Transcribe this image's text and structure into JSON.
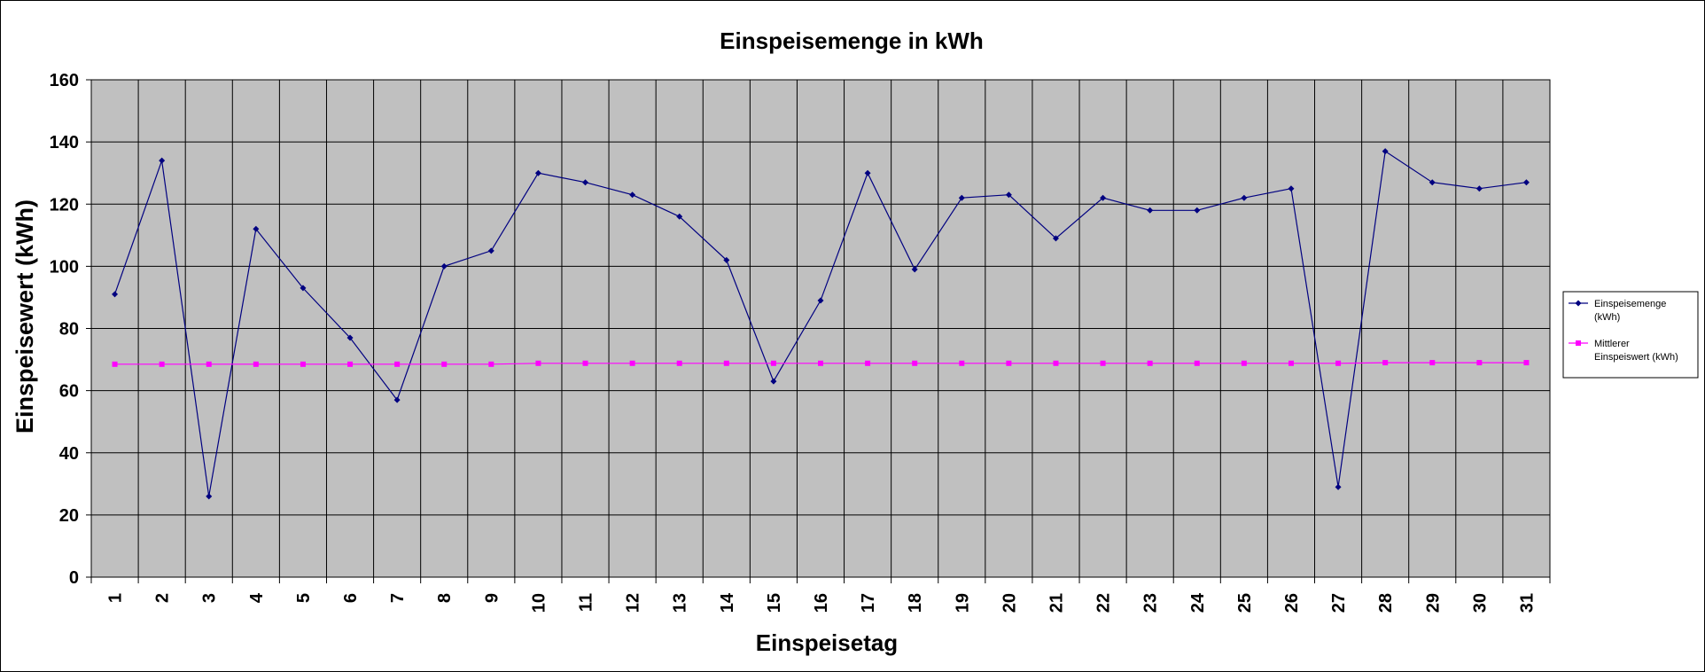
{
  "chart_data": {
    "type": "line",
    "title": "Einspeisemenge in kWh",
    "xlabel": "Einspeisetag",
    "ylabel": "Einspeisewert  (kWh)",
    "categories": [
      "1",
      "2",
      "3",
      "4",
      "5",
      "6",
      "7",
      "8",
      "9",
      "10",
      "11",
      "12",
      "13",
      "14",
      "15",
      "16",
      "17",
      "18",
      "19",
      "20",
      "21",
      "22",
      "23",
      "24",
      "25",
      "26",
      "27",
      "28",
      "29",
      "30",
      "31"
    ],
    "ylim": [
      0,
      160
    ],
    "yticks": [
      0,
      20,
      40,
      60,
      80,
      100,
      120,
      140,
      160
    ],
    "grid": true,
    "legend_position": "right",
    "series": [
      {
        "name": "Einspeisemenge (kWh)",
        "legend_lines": [
          "Einspeisemenge",
          "(kWh)"
        ],
        "color": "#000080",
        "marker": "diamond",
        "values": [
          91,
          134,
          26,
          112,
          93,
          77,
          57,
          100,
          105,
          130,
          127,
          123,
          116,
          102,
          63,
          89,
          130,
          99,
          122,
          123,
          109,
          122,
          118,
          118,
          122,
          125,
          29,
          137,
          127,
          125,
          127
        ]
      },
      {
        "name": "Mittlerer Einspeiswert (kWh)",
        "legend_lines": [
          "Mittlerer",
          "Einspeiswert (kWh)"
        ],
        "color": "#ff00ff",
        "marker": "square",
        "values": [
          68.5,
          68.5,
          68.5,
          68.5,
          68.5,
          68.5,
          68.5,
          68.5,
          68.5,
          68.8,
          68.8,
          68.8,
          68.8,
          68.8,
          68.8,
          68.8,
          68.8,
          68.8,
          68.8,
          68.8,
          68.8,
          68.8,
          68.8,
          68.8,
          68.8,
          68.8,
          68.8,
          69.0,
          69.0,
          69.0,
          69.0
        ]
      }
    ],
    "plot_background": "#c0c0c0"
  }
}
